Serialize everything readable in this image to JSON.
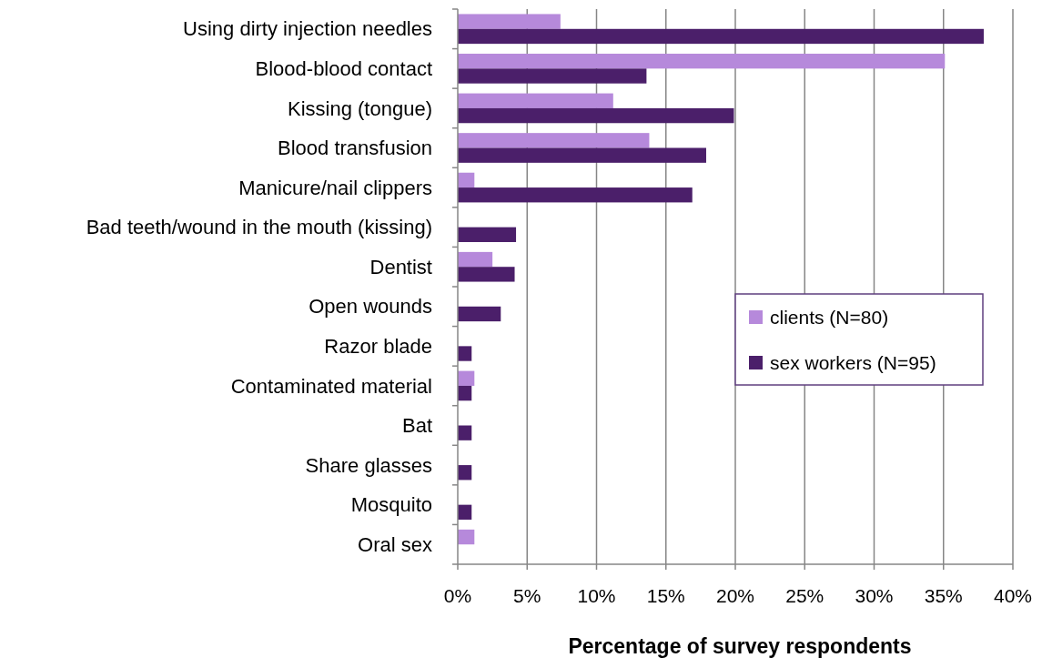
{
  "chart_data": {
    "type": "bar",
    "orientation": "horizontal",
    "xlabel": "Percentage of survey respondents",
    "categories": [
      "Using dirty injection needles",
      "Blood-blood contact",
      "Kissing (tongue)",
      "Blood transfusion",
      "Manicure/nail clippers",
      "Bad teeth/wound in the mouth (kissing)",
      "Dentist",
      "Open wounds",
      "Razor blade",
      "Contaminated material",
      "Bat",
      "Share glasses",
      "Mosquito",
      "Oral sex"
    ],
    "series": [
      {
        "name": "clients (N=80)",
        "color": "#b689db",
        "values": [
          7.4,
          35.1,
          11.2,
          13.8,
          1.2,
          null,
          2.5,
          null,
          null,
          1.2,
          null,
          null,
          null,
          1.2
        ]
      },
      {
        "name": "sex workers (N=95)",
        "color": "#4b1f6a",
        "values": [
          37.9,
          13.6,
          19.9,
          17.9,
          16.9,
          4.2,
          4.1,
          3.1,
          1.0,
          1.0,
          1.0,
          1.0,
          1.0,
          null
        ]
      }
    ],
    "xlim": [
      0,
      40
    ],
    "xticks": [
      {
        "value": 0,
        "label": "0%"
      },
      {
        "value": 5,
        "label": "5%"
      },
      {
        "value": 10,
        "label": "10%"
      },
      {
        "value": 15,
        "label": "15%"
      },
      {
        "value": 20,
        "label": "20%"
      },
      {
        "value": 25,
        "label": "25%"
      },
      {
        "value": 30,
        "label": "30%"
      },
      {
        "value": 35,
        "label": "35%"
      },
      {
        "value": 40,
        "label": "40%"
      }
    ],
    "grid": "x",
    "legend": "right"
  }
}
